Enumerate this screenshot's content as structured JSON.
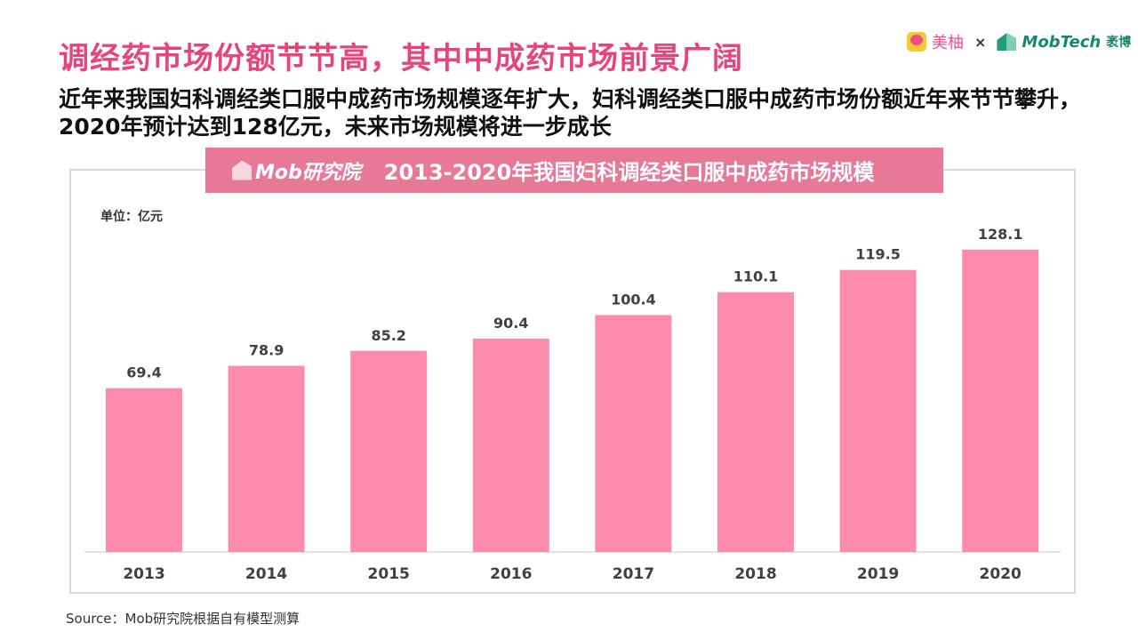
{
  "header": {
    "title": "调经药市场份额节节高，其中中成药市场前景广阔",
    "subtitle": "近年来我国妇科调经类口服中成药市场规模逐年扩大，妇科调经类口服中成药市场份额近年来节节攀升，2020年预计达到128亿元，未来市场规模将进一步成长"
  },
  "logos": {
    "meiyou": "美柚",
    "times": "×",
    "mobtech": "MobTech",
    "mobtech_cn": "袤博",
    "mob_research": "Mob研究院"
  },
  "source": "Source：Mob研究院根据自有模型测算",
  "colors": {
    "bar": "#fd8bad",
    "banner": "#e87897",
    "title": "#e5457a"
  },
  "chart_data": {
    "type": "bar",
    "title": "2013-2020年我国妇科调经类口服中成药市场规模",
    "unit_label": "单位：亿元",
    "categories": [
      "2013",
      "2014",
      "2015",
      "2016",
      "2017",
      "2018",
      "2019",
      "2020"
    ],
    "values": [
      69.4,
      78.9,
      85.2,
      90.4,
      100.4,
      110.1,
      119.5,
      128.1
    ],
    "ylim": [
      0,
      145
    ],
    "grid": false,
    "legend": "none"
  }
}
